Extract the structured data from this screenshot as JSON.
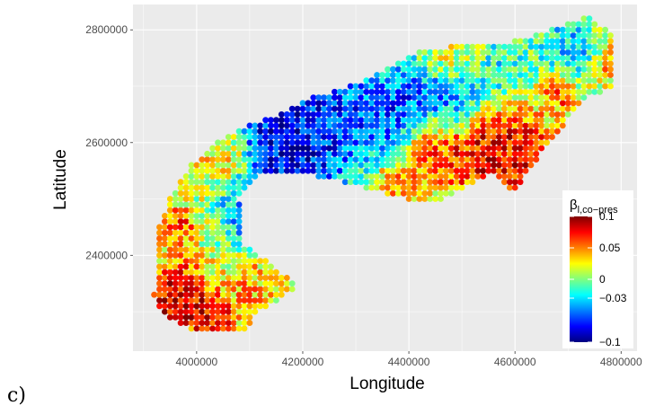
{
  "panel_label": "c)",
  "chart_data": {
    "type": "scatter",
    "xlabel": "Longitude",
    "ylabel": "Latitude",
    "xlim": [
      3880000,
      4830000
    ],
    "ylim": [
      2230000,
      2845000
    ],
    "x_ticks": [
      4000000,
      4200000,
      4400000,
      4600000,
      4800000
    ],
    "y_ticks": [
      2400000,
      2600000,
      2800000
    ],
    "x_tick_labels": [
      "4000000",
      "4200000",
      "4400000",
      "4600000",
      "4800000"
    ],
    "y_tick_labels": [
      "2400000",
      "2600000",
      "2800000"
    ],
    "grid": true,
    "panel_background": "#ebebeb",
    "grid_color": "#ffffff",
    "legend": {
      "title_main": "β",
      "title_sub": "l,co−pres",
      "placement": "right-inside-bottom",
      "range": [
        -0.1,
        0.1
      ],
      "break_values": [
        0.1,
        0.05,
        0,
        -0.03,
        -0.1
      ],
      "break_labels": [
        "0.1",
        "0.05",
        "0",
        "−0.03",
        "−0.1"
      ],
      "colors": [
        "#00007f",
        "#0000ff",
        "#007fff",
        "#00ffff",
        "#7fff7f",
        "#ffff00",
        "#ff7f00",
        "#ff0000",
        "#7f0000"
      ]
    },
    "grid_step": 10000,
    "outline": [
      [
        3935000,
        2295000
      ],
      [
        3985000,
        2268000
      ],
      [
        4055000,
        2270000
      ],
      [
        4095000,
        2262000
      ],
      [
        4115000,
        2300000
      ],
      [
        4170000,
        2330000
      ],
      [
        4190000,
        2345000
      ],
      [
        4125000,
        2395000
      ],
      [
        4085000,
        2420000
      ],
      [
        4080000,
        2500000
      ],
      [
        4125000,
        2545000
      ],
      [
        4180000,
        2548000
      ],
      [
        4300000,
        2525000
      ],
      [
        4370000,
        2505000
      ],
      [
        4440000,
        2490000
      ],
      [
        4505000,
        2520000
      ],
      [
        4560000,
        2545000
      ],
      [
        4600000,
        2510000
      ],
      [
        4630000,
        2555000
      ],
      [
        4665000,
        2600000
      ],
      [
        4700000,
        2640000
      ],
      [
        4735000,
        2680000
      ],
      [
        4790000,
        2700000
      ],
      [
        4785000,
        2790000
      ],
      [
        4740000,
        2825000
      ],
      [
        4680000,
        2805000
      ],
      [
        4600000,
        2780000
      ],
      [
        4500000,
        2775000
      ],
      [
        4420000,
        2760000
      ],
      [
        4340000,
        2720000
      ],
      [
        4270000,
        2695000
      ],
      [
        4220000,
        2680000
      ],
      [
        4160000,
        2650000
      ],
      [
        4100000,
        2630000
      ],
      [
        4040000,
        2600000
      ],
      [
        3990000,
        2560000
      ],
      [
        3950000,
        2500000
      ],
      [
        3930000,
        2450000
      ],
      [
        3925000,
        2380000
      ],
      [
        3920000,
        2330000
      ]
    ],
    "value_regions": [
      {
        "x": 4180000,
        "y": 2610000,
        "r": 90000,
        "value": -0.1
      },
      {
        "x": 4280000,
        "y": 2660000,
        "r": 70000,
        "value": -0.07
      },
      {
        "x": 4390000,
        "y": 2660000,
        "r": 60000,
        "value": -0.08
      },
      {
        "x": 4490000,
        "y": 2670000,
        "r": 40000,
        "value": -0.07
      },
      {
        "x": 4560000,
        "y": 2725000,
        "r": 55000,
        "value": -0.03
      },
      {
        "x": 4700000,
        "y": 2770000,
        "r": 45000,
        "value": -0.04
      },
      {
        "x": 4100000,
        "y": 2470000,
        "r": 45000,
        "value": -0.05
      },
      {
        "x": 4130000,
        "y": 2350000,
        "r": 30000,
        "value": -0.02
      },
      {
        "x": 4560000,
        "y": 2590000,
        "r": 70000,
        "value": 0.09
      },
      {
        "x": 4440000,
        "y": 2590000,
        "r": 45000,
        "value": 0.08
      },
      {
        "x": 4640000,
        "y": 2560000,
        "r": 40000,
        "value": 0.08
      },
      {
        "x": 4680000,
        "y": 2690000,
        "r": 25000,
        "value": 0.07
      },
      {
        "x": 4780000,
        "y": 2745000,
        "r": 20000,
        "value": 0.06
      },
      {
        "x": 3960000,
        "y": 2320000,
        "r": 50000,
        "value": 0.1
      },
      {
        "x": 4030000,
        "y": 2290000,
        "r": 30000,
        "value": 0.09
      },
      {
        "x": 4120000,
        "y": 2345000,
        "r": 35000,
        "value": 0.08
      },
      {
        "x": 3965000,
        "y": 2450000,
        "r": 25000,
        "value": 0.07
      },
      {
        "x": 4055000,
        "y": 2580000,
        "r": 35000,
        "value": 0.05
      },
      {
        "x": 4370000,
        "y": 2520000,
        "r": 30000,
        "value": 0.05
      },
      {
        "x": 4500000,
        "y": 2750000,
        "r": 40000,
        "value": 0.02
      }
    ],
    "base_value": 0.015
  }
}
